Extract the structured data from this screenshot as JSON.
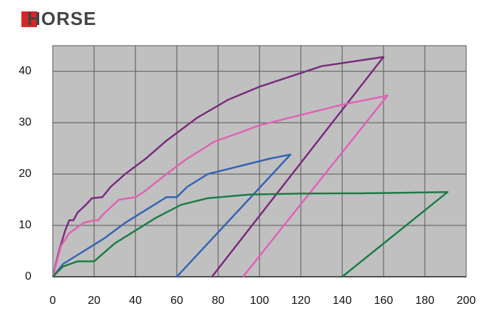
{
  "header": {
    "logo": "HORSE"
  },
  "chart_data": {
    "type": "line",
    "xlim": [
      0,
      200
    ],
    "xticks": [
      0,
      20,
      40,
      60,
      80,
      100,
      120,
      140,
      160,
      180,
      200
    ],
    "ylim": [
      0,
      45
    ],
    "yticks": [
      0,
      10,
      20,
      30,
      40
    ],
    "grid": true,
    "series": [
      {
        "color": "#7b2a7e",
        "x": [
          0,
          3,
          6,
          8,
          10,
          12,
          16,
          19,
          24,
          28,
          35,
          45,
          55,
          70,
          85,
          100,
          115,
          130,
          160,
          77
        ],
        "values": [
          0,
          5,
          9,
          11,
          11,
          12.5,
          14,
          15.3,
          15.5,
          17.5,
          20,
          23,
          26.5,
          31,
          34.5,
          37,
          39,
          41,
          42.8,
          0
        ]
      },
      {
        "color": "#e062b4",
        "x": [
          0,
          4,
          8,
          15,
          20,
          22,
          24,
          32,
          40,
          44,
          55,
          65,
          73,
          78,
          90,
          100,
          120,
          140,
          162,
          92
        ],
        "values": [
          0,
          6,
          8.5,
          10.5,
          11,
          11,
          12,
          15,
          15.5,
          16.5,
          20,
          23,
          25,
          26.3,
          28,
          29.5,
          31.5,
          33.5,
          35.3,
          0
        ]
      },
      {
        "color": "#3463b4",
        "x": [
          0,
          5,
          15,
          25,
          35,
          45,
          55,
          60,
          65,
          75,
          85,
          95,
          105,
          115,
          60
        ],
        "values": [
          0,
          2.5,
          5,
          7.5,
          10.5,
          13,
          15.5,
          15.5,
          17.5,
          20,
          21,
          22,
          23,
          23.8,
          0
        ]
      },
      {
        "color": "#1b7c45",
        "x": [
          0,
          5,
          12,
          20,
          30,
          40,
          50,
          62,
          75,
          95,
          120,
          160,
          191,
          140
        ],
        "values": [
          0,
          2,
          3,
          3,
          6.5,
          9,
          11.5,
          14,
          15.3,
          16,
          16.2,
          16.3,
          16.5,
          0
        ]
      }
    ]
  }
}
